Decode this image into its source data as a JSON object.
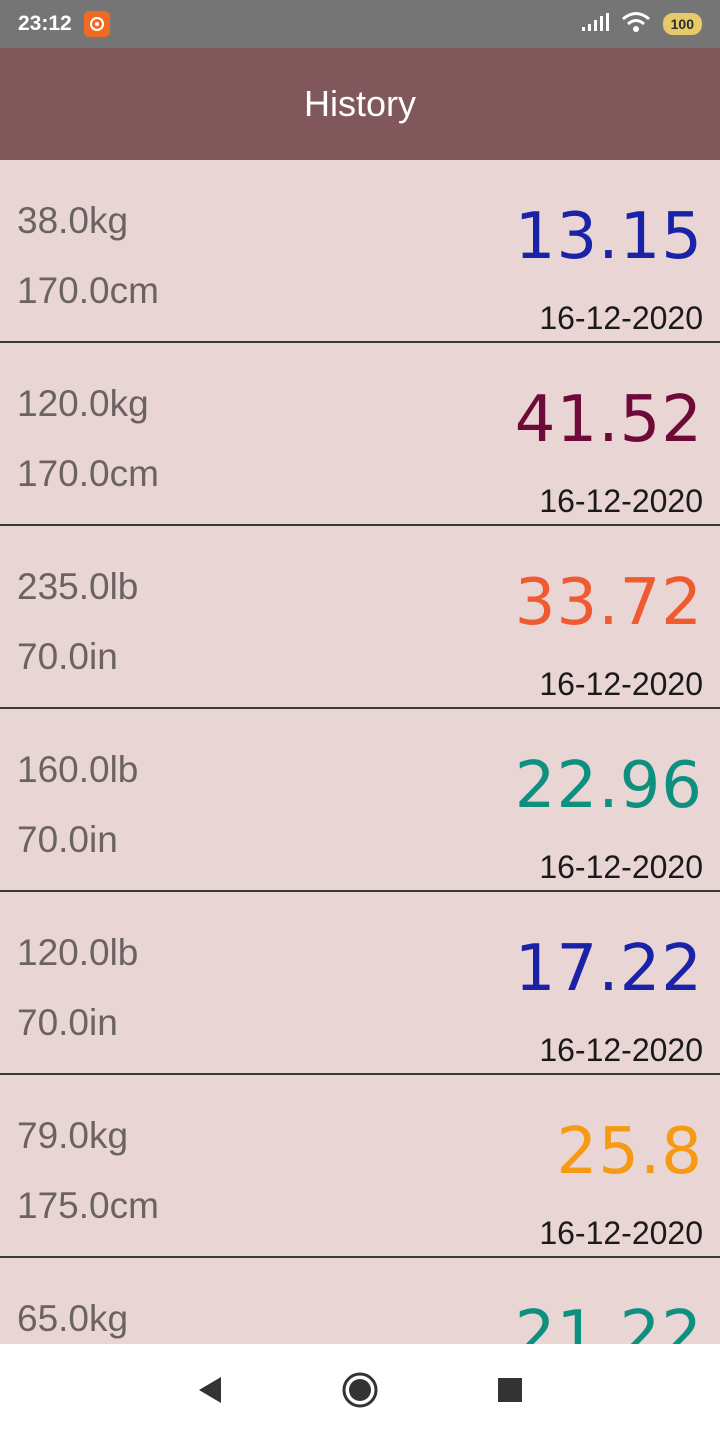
{
  "status_bar": {
    "time": "23:12",
    "battery": "100"
  },
  "app_bar": {
    "title": "History"
  },
  "history": [
    {
      "weight": "38.0kg",
      "height": "170.0cm",
      "bmi": "13.15",
      "date": "16-12-2020",
      "bmi_color": "#1a23a8"
    },
    {
      "weight": "120.0kg",
      "height": "170.0cm",
      "bmi": "41.52",
      "date": "16-12-2020",
      "bmi_color": "#6e0a3a"
    },
    {
      "weight": "235.0lb",
      "height": "70.0in",
      "bmi": "33.72",
      "date": "16-12-2020",
      "bmi_color": "#f05a30"
    },
    {
      "weight": "160.0lb",
      "height": "70.0in",
      "bmi": "22.96",
      "date": "16-12-2020",
      "bmi_color": "#0d9080"
    },
    {
      "weight": "120.0lb",
      "height": "70.0in",
      "bmi": "17.22",
      "date": "16-12-2020",
      "bmi_color": "#1a23a8"
    },
    {
      "weight": "79.0kg",
      "height": "175.0cm",
      "bmi": "25.8",
      "date": "16-12-2020",
      "bmi_color": "#f59a12"
    },
    {
      "weight": "65.0kg",
      "height": "",
      "bmi": "21.22",
      "date": "",
      "bmi_color": "#0d9080"
    }
  ],
  "nav_bar": {
    "back_icon": "back-triangle-icon",
    "home_icon": "home-circle-icon",
    "recents_icon": "recents-square-icon"
  }
}
